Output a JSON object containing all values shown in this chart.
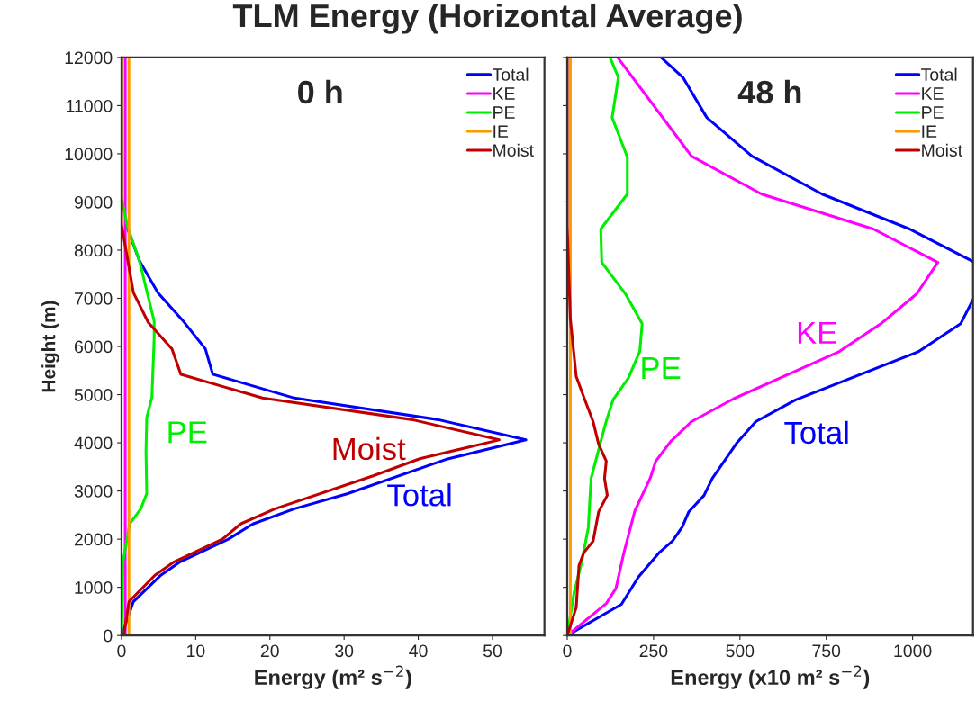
{
  "chart_data": [
    {
      "type": "line",
      "title": "TLM Energy (Horizontal Average)",
      "xlabel": "Energy (m² s$^{−2}$)",
      "ylabel": "Height (m)",
      "xlim": [
        0,
        57
      ],
      "xticks": [
        0,
        10,
        20,
        30,
        40,
        50
      ],
      "ylim": [
        0,
        12000
      ],
      "yticks": [
        0,
        1000,
        2000,
        3000,
        4000,
        5000,
        6000,
        7000,
        8000,
        9000,
        10000,
        11000,
        12000
      ],
      "grid": false,
      "legend": "top right",
      "series": [
        {
          "name": "Total",
          "color": "#0000ff",
          "x": [
            0,
            1.6,
            5.3,
            7.9,
            14.4,
            17.7,
            23.3,
            30.5,
            43.7,
            54.5,
            42.7,
            23.3,
            12.3,
            11.3,
            8.2,
            4.9,
            2.4,
            0.7
          ],
          "values": [
            0,
            703,
            1252,
            1529,
            2000,
            2316,
            2630,
            2946,
            3654,
            4063,
            4480,
            4929,
            5424,
            5951,
            6549,
            7116,
            7785,
            8493
          ]
        },
        {
          "name": "KE",
          "color": "#ff00ff",
          "x": [
            0.5,
            0.5
          ],
          "values": [
            0,
            12000
          ]
        },
        {
          "name": "PE",
          "color": "#00ee00",
          "x": [
            0,
            0.2,
            1.1,
            2.6,
            3.4,
            3.3,
            3.4,
            4.1,
            4.4,
            4.4,
            2.4,
            0.8,
            0,
            0
          ],
          "values": [
            0,
            1529,
            2316,
            2630,
            2946,
            3811,
            4520,
            4953,
            6172,
            6527,
            7785,
            8493,
            9084,
            12000
          ]
        },
        {
          "name": "IE",
          "color": "#ff9900",
          "x": [
            1.0,
            1.0
          ],
          "values": [
            0,
            12000
          ]
        },
        {
          "name": "Moist",
          "color": "#c00000",
          "x": [
            0.3,
            1.0,
            4.5,
            7.1,
            13.6,
            16.1,
            20.7,
            34.0,
            40.2,
            50.9,
            39.2,
            19.0,
            8.0,
            6.8,
            3.6,
            1.6,
            0,
            0
          ],
          "values": [
            0,
            700,
            1250,
            1530,
            2000,
            2320,
            2630,
            3320,
            3670,
            4060,
            4480,
            4930,
            5420,
            5950,
            6500,
            7120,
            8530,
            12000
          ]
        }
      ],
      "annotations": [
        "0 h",
        "PE",
        "Moist",
        "Total"
      ]
    },
    {
      "type": "line",
      "xlabel": "Energy (x10 m² s$^{−2}$)",
      "xlim": [
        0,
        1175
      ],
      "xticks": [
        0,
        250,
        500,
        750,
        1000
      ],
      "ylim": [
        0,
        12000
      ],
      "yticks": [
        0,
        1000,
        2000,
        3000,
        4000,
        5000,
        6000,
        7000,
        8000,
        9000,
        10000,
        11000,
        12000
      ],
      "tick_labels": "x",
      "grid": false,
      "legend": "top right",
      "series": [
        {
          "name": "Total",
          "color": "#0000ff",
          "x": [
            0,
            157,
            206,
            267,
            305,
            333,
            352,
            396,
            420,
            492,
            546,
            661,
            1018,
            1139,
            1175,
            null,
            1175,
            991,
            738,
            535,
            404,
            335,
            272
          ],
          "values": [
            0,
            647,
            1213,
            1725,
            1963,
            2252,
            2568,
            2906,
            3260,
            4007,
            4441,
            4890,
            5897,
            6471,
            6975,
            null,
            7763,
            8439,
            9163,
            9950,
            10753,
            11587,
            12000
          ]
        },
        {
          "name": "KE",
          "color": "#ff00ff",
          "x": [
            0,
            113,
            141,
            163,
            196,
            240,
            256,
            300,
            360,
            481,
            629,
            788,
            908,
            1012,
            1073,
            886,
            563,
            360,
            146
          ],
          "values": [
            0,
            664,
            977,
            1686,
            2591,
            3260,
            3615,
            4032,
            4441,
            4912,
            5385,
            5897,
            6471,
            7094,
            7746,
            8439,
            9163,
            9950,
            12000
          ]
        },
        {
          "name": "PE",
          "color": "#00ee00",
          "x": [
            0,
            20,
            42,
            61,
            69,
            111,
            133,
            177,
            210,
            217,
            170,
            100,
            97,
            174,
            174,
            130,
            148,
            124
          ],
          "values": [
            0,
            899,
            1529,
            2237,
            3260,
            4402,
            4897,
            5346,
            5897,
            6471,
            7077,
            7746,
            8439,
            9163,
            9935,
            10753,
            11587,
            12000
          ]
        },
        {
          "name": "IE",
          "color": "#ff9900",
          "x": [
            9,
            9
          ],
          "values": [
            0,
            12000
          ]
        },
        {
          "name": "Moist",
          "color": "#c00000",
          "x": [
            0,
            26,
            34,
            48,
            75,
            91,
            116,
            108,
            113,
            91,
            75,
            48,
            26,
            9,
            0,
            0
          ],
          "values": [
            0,
            580,
            1450,
            1720,
            1960,
            2570,
            2910,
            3260,
            3620,
            3970,
            4440,
            4950,
            5380,
            6570,
            8500,
            12000
          ]
        }
      ],
      "annotations": [
        "48 h",
        "PE",
        "KE",
        "Total"
      ]
    }
  ]
}
